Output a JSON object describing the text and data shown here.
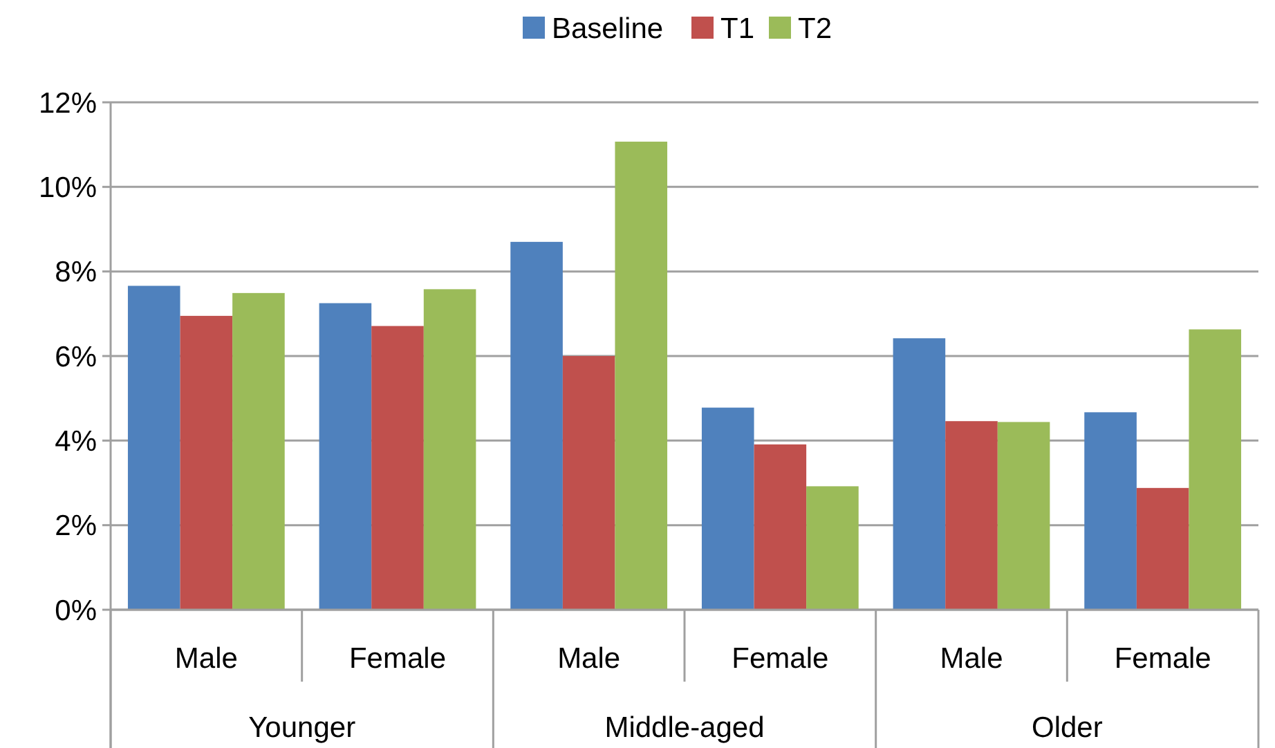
{
  "chart_data": {
    "type": "bar",
    "categories": [
      "Male",
      "Female",
      "Male",
      "Female",
      "Male",
      "Female"
    ],
    "annotations": [
      "Younger",
      "Middle-aged",
      "Older"
    ],
    "series": [
      {
        "name": "Baseline",
        "color": "#4f81bd",
        "values": [
          7.66,
          7.25,
          8.7,
          4.78,
          6.42,
          4.67
        ]
      },
      {
        "name": "T1",
        "color": "#c0504d",
        "values": [
          6.95,
          6.71,
          6.0,
          3.91,
          4.46,
          2.88
        ]
      },
      {
        "name": "T2",
        "color": "#9bbb59",
        "values": [
          7.49,
          7.58,
          11.07,
          2.92,
          4.44,
          6.63
        ]
      }
    ],
    "ylim": [
      0,
      12
    ],
    "yticks": [
      {
        "value": 0,
        "label": "0%"
      },
      {
        "value": 2,
        "label": "2%"
      },
      {
        "value": 4,
        "label": "4%"
      },
      {
        "value": 6,
        "label": "6%"
      },
      {
        "value": 8,
        "label": "8%"
      },
      {
        "value": 10,
        "label": "10%"
      },
      {
        "value": 12,
        "label": "12%"
      }
    ],
    "grid": "y",
    "legend": "top"
  }
}
